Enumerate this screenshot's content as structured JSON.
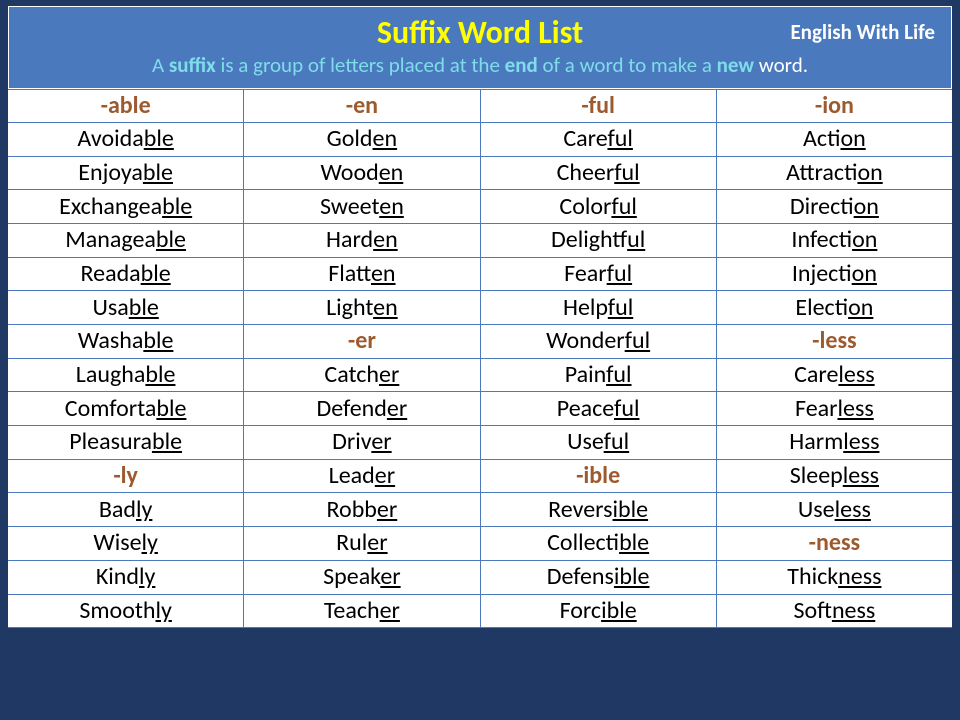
{
  "header": {
    "title": "Suffix Word List",
    "brand": "English With Life",
    "subtitle_parts": {
      "p1": "A ",
      "strong": "suffix",
      "p2": " is a group of letters placed at the ",
      "em_end": "end",
      "p3": " of a word to make a ",
      "em_new": "new",
      "tail": " word."
    }
  },
  "colors": {
    "page_border": "#1f3864",
    "header_bg": "#4a79bd",
    "title": "#ffff00",
    "subtitle": "#7fdde9",
    "brand": "#ffffff",
    "grid_line": "#4a79bd",
    "suffix_header": "#9c5a2e",
    "word_text": "#000000",
    "cell_bg": "#ffffff"
  },
  "fonts": {
    "title_size": 32,
    "brand_size": 21,
    "subtitle_size": 21,
    "cell_size": 24
  },
  "table": {
    "type": "table",
    "columns": 4,
    "rows": [
      [
        {
          "kind": "header",
          "text": "-able"
        },
        {
          "kind": "header",
          "text": "-en"
        },
        {
          "kind": "header",
          "text": "-ful"
        },
        {
          "kind": "header",
          "text": "-ion"
        }
      ],
      [
        {
          "kind": "word",
          "pre": "Avoida",
          "suf": "ble"
        },
        {
          "kind": "word",
          "pre": "Gold",
          "suf": "en"
        },
        {
          "kind": "word",
          "pre": "Care",
          "suf": "ful"
        },
        {
          "kind": "word",
          "pre": "Act",
          "suf": "ion"
        }
      ],
      [
        {
          "kind": "word",
          "pre": "Enjoya",
          "suf": "ble"
        },
        {
          "kind": "word",
          "pre": "Wood",
          "suf": "en"
        },
        {
          "kind": "word",
          "pre": "Cheer",
          "suf": "ful"
        },
        {
          "kind": "word",
          "pre": "Attract",
          "suf": "ion"
        }
      ],
      [
        {
          "kind": "word",
          "pre": "Exchangea",
          "suf": "ble"
        },
        {
          "kind": "word",
          "pre": "Sweet",
          "suf": "en"
        },
        {
          "kind": "word",
          "pre": "Color",
          "suf": "ful"
        },
        {
          "kind": "word",
          "pre": "Direct",
          "suf": "ion"
        }
      ],
      [
        {
          "kind": "word",
          "pre": "Managea",
          "suf": "ble"
        },
        {
          "kind": "word",
          "pre": "Hard",
          "suf": "en"
        },
        {
          "kind": "word",
          "pre": "Delight",
          "suf": "ful"
        },
        {
          "kind": "word",
          "pre": "Infect",
          "suf": "ion"
        }
      ],
      [
        {
          "kind": "word",
          "pre": "Reada",
          "suf": "ble"
        },
        {
          "kind": "word",
          "pre": "Flatt",
          "suf": "en"
        },
        {
          "kind": "word",
          "pre": "Fear",
          "suf": "ful"
        },
        {
          "kind": "word",
          "pre": "Inject",
          "suf": "ion"
        }
      ],
      [
        {
          "kind": "word",
          "pre": "Usa",
          "suf": "ble"
        },
        {
          "kind": "word",
          "pre": "Light",
          "suf": "en"
        },
        {
          "kind": "word",
          "pre": "Help",
          "suf": "ful"
        },
        {
          "kind": "word",
          "pre": "Elect",
          "suf": "ion"
        }
      ],
      [
        {
          "kind": "word",
          "pre": "Washa",
          "suf": "ble"
        },
        {
          "kind": "header",
          "text": "-er"
        },
        {
          "kind": "word",
          "pre": "Wonder",
          "suf": "ful"
        },
        {
          "kind": "header",
          "text": "-less"
        }
      ],
      [
        {
          "kind": "word",
          "pre": "Laugha",
          "suf": "ble"
        },
        {
          "kind": "word",
          "pre": "Catch",
          "suf": "er"
        },
        {
          "kind": "word",
          "pre": "Pain",
          "suf": "ful"
        },
        {
          "kind": "word",
          "pre": "Care",
          "suf": "less"
        }
      ],
      [
        {
          "kind": "word",
          "pre": "Comforta",
          "suf": "ble"
        },
        {
          "kind": "word",
          "pre": "Defend",
          "suf": "er"
        },
        {
          "kind": "word",
          "pre": "Peace",
          "suf": "ful"
        },
        {
          "kind": "word",
          "pre": "Fear",
          "suf": "less"
        }
      ],
      [
        {
          "kind": "word",
          "pre": "Pleasura",
          "suf": "ble"
        },
        {
          "kind": "word",
          "pre": "Driv",
          "suf": "er"
        },
        {
          "kind": "word",
          "pre": "Use",
          "suf": "ful"
        },
        {
          "kind": "word",
          "pre": "Harm",
          "suf": "less"
        }
      ],
      [
        {
          "kind": "header",
          "text": "-ly"
        },
        {
          "kind": "word",
          "pre": "Lead",
          "suf": "er"
        },
        {
          "kind": "header",
          "text": "-ible"
        },
        {
          "kind": "word",
          "pre": "Sleep",
          "suf": "less"
        }
      ],
      [
        {
          "kind": "word",
          "pre": "Bad",
          "suf": "ly"
        },
        {
          "kind": "word",
          "pre": "Robb",
          "suf": "er"
        },
        {
          "kind": "word",
          "pre": "Revers",
          "suf": "ible"
        },
        {
          "kind": "word",
          "pre": "Use",
          "suf": "less"
        }
      ],
      [
        {
          "kind": "word",
          "pre": "Wise",
          "suf": "ly"
        },
        {
          "kind": "word",
          "pre": "Rul",
          "suf": "er"
        },
        {
          "kind": "word",
          "pre": "Collect",
          "suf": "ible"
        },
        {
          "kind": "header",
          "text": "-ness"
        }
      ],
      [
        {
          "kind": "word",
          "pre": "Kind",
          "suf": "ly"
        },
        {
          "kind": "word",
          "pre": "Speak",
          "suf": "er"
        },
        {
          "kind": "word",
          "pre": "Defens",
          "suf": "ible"
        },
        {
          "kind": "word",
          "pre": "Thick",
          "suf": "ness"
        }
      ],
      [
        {
          "kind": "word",
          "pre": "Smooth",
          "suf": "ly"
        },
        {
          "kind": "word",
          "pre": "Teach",
          "suf": "er"
        },
        {
          "kind": "word",
          "pre": "Forc",
          "suf": "ible"
        },
        {
          "kind": "word",
          "pre": "Soft",
          "suf": "ness"
        }
      ]
    ]
  }
}
